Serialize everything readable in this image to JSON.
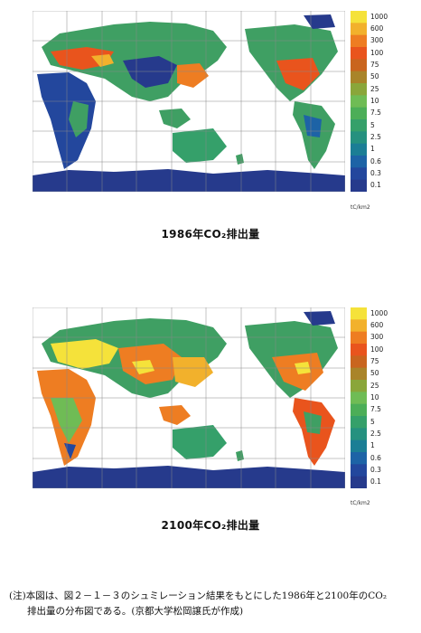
{
  "maps": [
    {
      "title": "1986年CO₂排出量",
      "colorbar_labels": [
        "1000",
        "600",
        "300",
        "100",
        "75",
        "50",
        "25",
        "10",
        "7.5",
        "5",
        "2.5",
        "1",
        "0.6",
        "0.3",
        "0.1"
      ],
      "colorbar_colors": [
        "#f5e23a",
        "#f2b12c",
        "#ee7d22",
        "#e9541d",
        "#c9651e",
        "#a98429",
        "#8aa63a",
        "#6fbc55",
        "#4cae58",
        "#35a06a",
        "#25917f",
        "#1b7e95",
        "#1d63a6",
        "#23479d",
        "#263a8c"
      ],
      "unit": "tC/km2"
    },
    {
      "title": "2100年CO₂排出量",
      "colorbar_labels": [
        "1000",
        "600",
        "300",
        "100",
        "75",
        "50",
        "25",
        "10",
        "7.5",
        "5",
        "2.5",
        "1",
        "0.6",
        "0.3",
        "0.1"
      ],
      "colorbar_colors": [
        "#f5e23a",
        "#f2b12c",
        "#ee7d22",
        "#e9541d",
        "#c9651e",
        "#a98429",
        "#8aa63a",
        "#6fbc55",
        "#4cae58",
        "#35a06a",
        "#25917f",
        "#1b7e95",
        "#1d63a6",
        "#23479d",
        "#263a8c"
      ],
      "unit": "tC/km2"
    }
  ],
  "note": {
    "line1": "(注)本図は、図２－１－３のシュミレーション結果をもとにした1986年と2100年のCO₂",
    "line2": "排出量の分布図である。(京都大学松岡譲氏が作成)"
  }
}
